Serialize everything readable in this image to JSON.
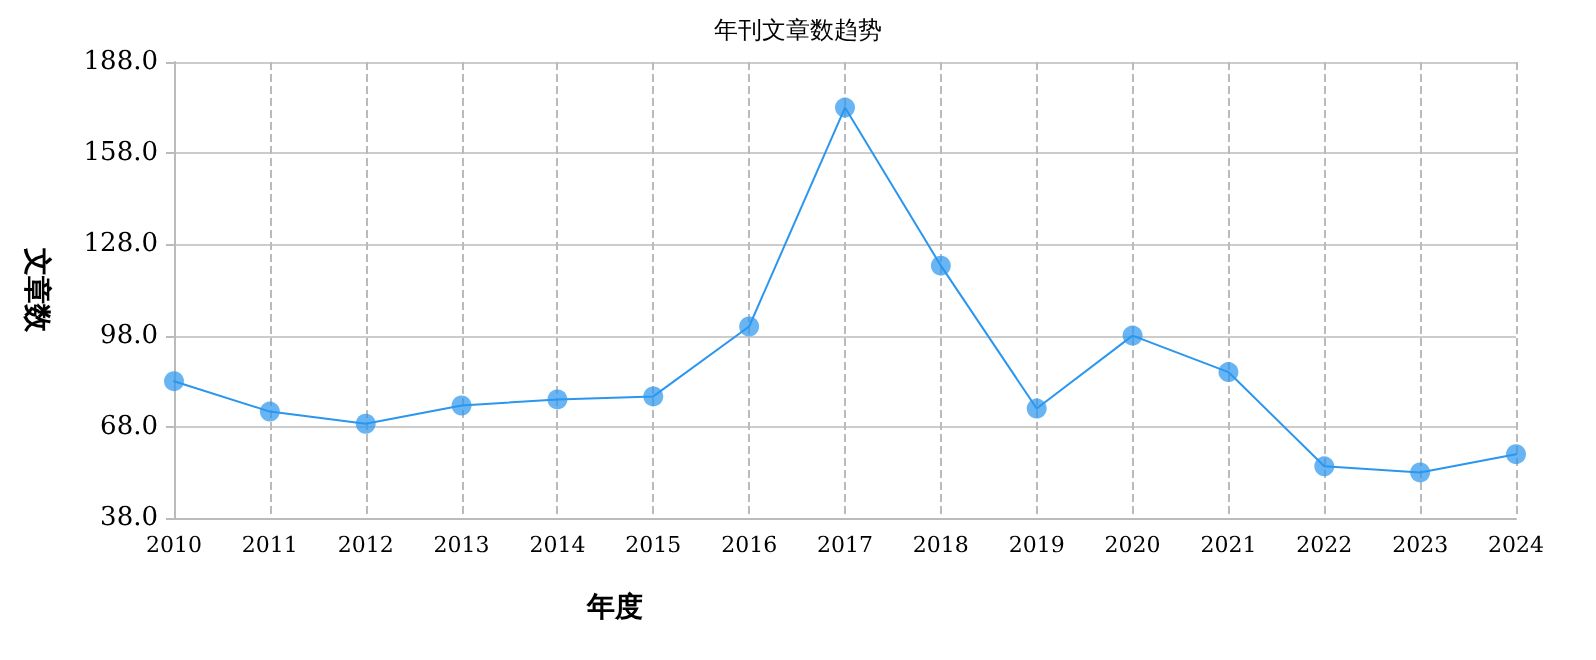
{
  "chart_data": {
    "type": "line",
    "title": "年刊文章数趋势",
    "xlabel": "年度",
    "ylabel": "文章数",
    "categories": [
      "2010",
      "2011",
      "2012",
      "2013",
      "2014",
      "2015",
      "2016",
      "2017",
      "2018",
      "2019",
      "2020",
      "2021",
      "2022",
      "2023",
      "2024"
    ],
    "series": [
      {
        "color": "#2a96f0",
        "values": [
          83,
          73,
          69,
          75,
          77,
          78,
          101,
          173,
          121,
          74,
          98,
          86,
          55,
          53,
          59
        ]
      }
    ],
    "ylim": [
      38,
      188
    ],
    "yticks": [
      {
        "value": 38,
        "label": "38.0"
      },
      {
        "value": 68,
        "label": "68.0"
      },
      {
        "value": 98,
        "label": "98.0"
      },
      {
        "value": 128,
        "label": "128.0"
      },
      {
        "value": 158,
        "label": "158.0"
      },
      {
        "value": 188,
        "label": "188.0"
      }
    ],
    "grid": true,
    "marker": "circle",
    "line_style": "solid"
  }
}
